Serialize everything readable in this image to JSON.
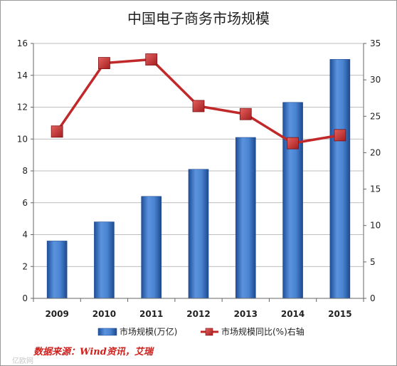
{
  "chart_data": {
    "type": "bar",
    "title": "中国电子商务市场规模",
    "categories": [
      "2009",
      "2010",
      "2011",
      "2012",
      "2013",
      "2014",
      "2015"
    ],
    "series": [
      {
        "name": "市场规模(万亿)",
        "type": "bar",
        "axis": "left",
        "color": "#3d74c2",
        "values": [
          3.6,
          4.8,
          6.4,
          8.1,
          10.1,
          12.3,
          15.0
        ]
      },
      {
        "name": "市场规模同比(%)右轴",
        "type": "line",
        "axis": "right",
        "color": "#c0282a",
        "values": [
          22.9,
          32.3,
          32.8,
          26.4,
          25.3,
          21.3,
          22.4
        ]
      }
    ],
    "y_left": {
      "min": 0,
      "max": 16,
      "ticks": [
        0,
        2,
        4,
        6,
        8,
        10,
        12,
        14,
        16
      ]
    },
    "y_right": {
      "min": 0,
      "max": 35,
      "ticks": [
        0,
        5,
        10,
        15,
        20,
        25,
        30,
        35
      ]
    },
    "grid": true,
    "legend_position": "bottom"
  },
  "source_note": "数据来源：Wind资讯，艾瑞",
  "watermark": "亿欧网"
}
